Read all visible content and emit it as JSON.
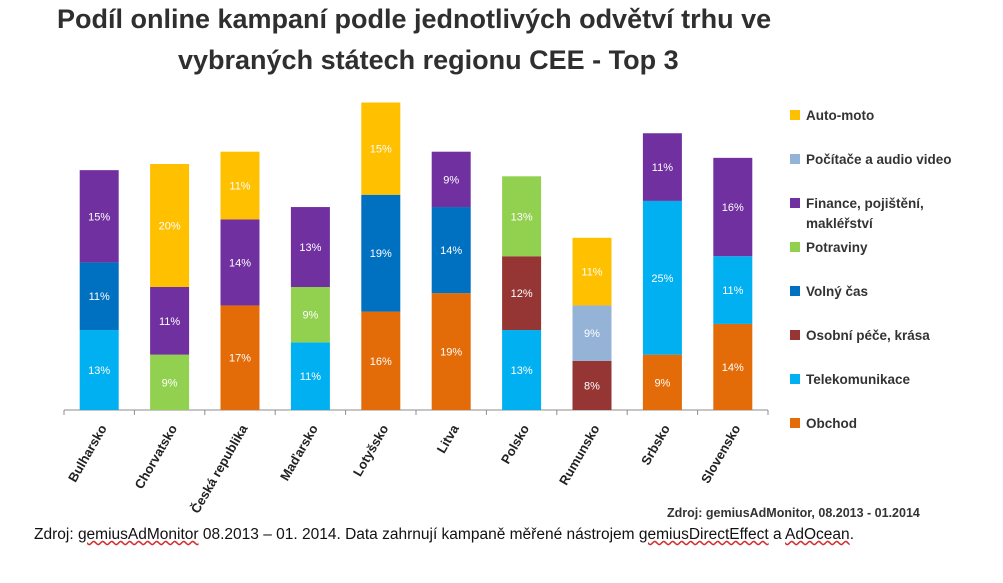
{
  "title_line1": "Podíl online kampaní podle jednotlivých odvětví trhu ve",
  "title_line2": "vybraných státech regionu CEE - Top 3",
  "chart_source": "Zdroj: gemiusAdMonitor, 08.2013 - 01.2014",
  "footnote": {
    "part1": "Zdroj: ",
    "part2": "gemiusAdMonitor",
    "part3": " 08.2013 – 01. 2014. Data zahrnují kampaně měřené nástrojem ",
    "part4": "gemiusDirectEffect",
    "part5": " a ",
    "part6": "AdOcean",
    "part7": "."
  },
  "colors": {
    "Auto-moto": "#ffc000",
    "Počítače a audio video": "#95b3d7",
    "Finance, pojištění, makléřství": "#7030a0",
    "Potraviny": "#92d050",
    "Volný čas": "#0070c0",
    "Osobní péče, krása": "#963634",
    "Telekomunikace": "#00b0f0",
    "Obchod": "#e36c09"
  },
  "legend": [
    "Auto-moto",
    "Počítače a audio video",
    "Finance, pojištění, makléřství",
    "Potraviny",
    "Volný čas",
    "Osobní péče, krása",
    "Telekomunikace",
    "Obchod"
  ],
  "chart_data": {
    "type": "bar",
    "stacked": true,
    "categories": [
      "Bulharsko",
      "Chorvatsko",
      "Česká republika",
      "Maďarsko",
      "Lotyšsko",
      "Litva",
      "Polsko",
      "Rumunsko",
      "Srbsko",
      "Slovensko"
    ],
    "stacks": [
      [
        {
          "series": "Telekomunikace",
          "value": 13
        },
        {
          "series": "Volný čas",
          "value": 11
        },
        {
          "series": "Finance, pojištění, makléřství",
          "value": 15
        }
      ],
      [
        {
          "series": "Potraviny",
          "value": 9
        },
        {
          "series": "Finance, pojištění, makléřství",
          "value": 11
        },
        {
          "series": "Auto-moto",
          "value": 20
        }
      ],
      [
        {
          "series": "Obchod",
          "value": 17
        },
        {
          "series": "Finance, pojištění, makléřství",
          "value": 14
        },
        {
          "series": "Auto-moto",
          "value": 11
        }
      ],
      [
        {
          "series": "Telekomunikace",
          "value": 11
        },
        {
          "series": "Potraviny",
          "value": 9
        },
        {
          "series": "Finance, pojištění, makléřství",
          "value": 13
        }
      ],
      [
        {
          "series": "Obchod",
          "value": 16
        },
        {
          "series": "Volný čas",
          "value": 19
        },
        {
          "series": "Auto-moto",
          "value": 15
        }
      ],
      [
        {
          "series": "Obchod",
          "value": 19
        },
        {
          "series": "Volný čas",
          "value": 14
        },
        {
          "series": "Finance, pojištění, makléřství",
          "value": 9
        }
      ],
      [
        {
          "series": "Telekomunikace",
          "value": 13
        },
        {
          "series": "Osobní péče, krása",
          "value": 12
        },
        {
          "series": "Potraviny",
          "value": 13
        }
      ],
      [
        {
          "series": "Osobní péče, krása",
          "value": 8
        },
        {
          "series": "Počítače a audio video",
          "value": 9
        },
        {
          "series": "Auto-moto",
          "value": 11
        }
      ],
      [
        {
          "series": "Obchod",
          "value": 9
        },
        {
          "series": "Telekomunikace",
          "value": 25
        },
        {
          "series": "Finance, pojištění, makléřství",
          "value": 11
        }
      ],
      [
        {
          "series": "Obchod",
          "value": 14
        },
        {
          "series": "Telekomunikace",
          "value": 11
        },
        {
          "series": "Finance, pojištění, makléřství",
          "value": 16
        }
      ]
    ],
    "value_suffix": "%",
    "ylim": [
      0,
      50
    ],
    "grid": false,
    "legend_position": "right"
  }
}
